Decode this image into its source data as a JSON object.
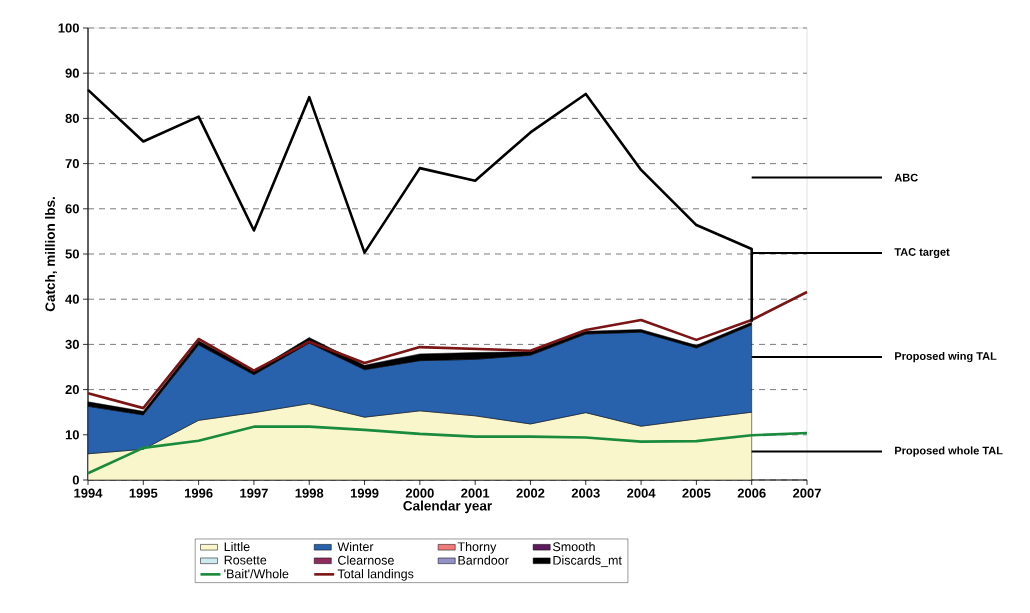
{
  "chart_data": {
    "type": "area",
    "stacked": true,
    "xlabel": "Calendar year",
    "ylabel": "Catch, million lbs.",
    "x": [
      1994,
      1995,
      1996,
      1997,
      1998,
      1999,
      2000,
      2001,
      2002,
      2003,
      2004,
      2005,
      2006
    ],
    "xlim": [
      1994,
      2007
    ],
    "xticks": [
      1994,
      1995,
      1996,
      1997,
      1998,
      1999,
      2000,
      2001,
      2002,
      2003,
      2004,
      2005,
      2006,
      2007
    ],
    "ylim": [
      0,
      100
    ],
    "yticks": [
      0,
      10,
      20,
      30,
      40,
      50,
      60,
      70,
      80,
      90,
      100
    ],
    "grid": "y",
    "legend": "bottom",
    "series": [
      {
        "name": "Little",
        "color": "#faf6cc",
        "values": [
          5.8,
          6.8,
          13.2,
          14.9,
          16.9,
          13.9,
          15.3,
          14.2,
          12.4,
          14.9,
          11.9,
          13.5,
          15.0
        ]
      },
      {
        "name": "Winter",
        "color": "#2862ad",
        "values": [
          10.5,
          7.6,
          16.7,
          8.4,
          13.4,
          10.5,
          11.1,
          12.5,
          15.2,
          17.4,
          20.8,
          15.7,
          19.3
        ]
      },
      {
        "name": "Thorny",
        "color": "#f27a7a",
        "values": [
          null,
          null,
          null,
          null,
          null,
          null,
          null,
          null,
          null,
          null,
          null,
          null,
          null
        ]
      },
      {
        "name": "Smooth",
        "color": "#5e1a5e",
        "values": [
          null,
          null,
          null,
          null,
          null,
          null,
          null,
          null,
          null,
          null,
          null,
          null,
          null
        ]
      },
      {
        "name": "Rosette",
        "color": "#cdeaf0",
        "values": [
          null,
          null,
          null,
          null,
          null,
          null,
          null,
          null,
          null,
          null,
          null,
          null,
          null
        ]
      },
      {
        "name": "Clearnose",
        "color": "#902c5c",
        "values": [
          null,
          null,
          null,
          null,
          null,
          null,
          null,
          null,
          null,
          null,
          null,
          null,
          null
        ]
      },
      {
        "name": "Barndoor",
        "color": "#9490c8",
        "values": [
          null,
          null,
          null,
          null,
          null,
          null,
          null,
          null,
          null,
          null,
          null,
          null,
          null
        ]
      },
      {
        "name": "Discards_mt",
        "color": "#000000",
        "values": [
          1.0,
          0.8,
          0.9,
          0.8,
          1.2,
          1.0,
          1.5,
          1.5,
          0.8,
          0.6,
          0.6,
          0.6,
          0.6
        ]
      },
      {
        "name": "'Bait'/Whole",
        "type": "line",
        "color": "#1a8a3c",
        "x": [
          1994,
          1995,
          1996,
          1997,
          1998,
          1999,
          2000,
          2001,
          2002,
          2003,
          2004,
          2005,
          2006,
          2007
        ],
        "values": [
          1.5,
          7.1,
          8.7,
          11.8,
          11.8,
          11.1,
          10.2,
          9.6,
          9.6,
          9.4,
          8.5,
          8.6,
          9.9,
          10.4
        ]
      },
      {
        "name": "Total landings",
        "type": "line",
        "color": "#7b1414",
        "x": [
          1994,
          1995,
          1996,
          1997,
          1998,
          1999,
          2000,
          2001,
          2002,
          2003,
          2004,
          2005,
          2006,
          2007
        ],
        "values": [
          19.2,
          15.9,
          31.2,
          24.2,
          30.6,
          25.9,
          29.4,
          29.0,
          28.6,
          33.2,
          35.4,
          31.0,
          35.4,
          41.6
        ]
      },
      {
        "type": "line",
        "color": "#000000",
        "x": [
          1994,
          1995,
          1996,
          1997,
          1998,
          1999,
          2000,
          2001,
          2002,
          2003,
          2004,
          2005,
          2006,
          2006
        ],
        "values": [
          86.3,
          74.9,
          80.4,
          55.2,
          84.7,
          50.3,
          69.0,
          66.2,
          76.9,
          85.4,
          68.6,
          56.4,
          51.1,
          35.0
        ]
      }
    ],
    "ref_lines": [
      {
        "axis": "y",
        "value": 66.9,
        "label": "ABC",
        "color": "#000000"
      },
      {
        "axis": "y",
        "value": 50.2,
        "label": "TAC target",
        "color": "#000000"
      },
      {
        "axis": "y",
        "value": 27.2,
        "label": "Proposed wing TAL",
        "color": "#000000"
      },
      {
        "axis": "y",
        "value": 6.3,
        "label": "Proposed whole TAL",
        "color": "#000000"
      }
    ]
  }
}
